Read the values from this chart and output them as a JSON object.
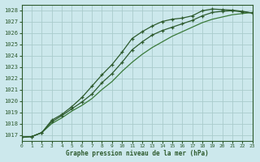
{
  "title": "Graphe pression niveau de la mer (hPa)",
  "bg_color": "#cce8ec",
  "grid_color": "#aacccc",
  "line_color_dark": "#2d5a2d",
  "line_color_mid": "#3a7a3a",
  "xlim": [
    0,
    23
  ],
  "ylim": [
    1016.5,
    1028.5
  ],
  "yticks": [
    1017,
    1018,
    1019,
    1020,
    1021,
    1022,
    1023,
    1024,
    1025,
    1026,
    1027,
    1028
  ],
  "xticks": [
    0,
    1,
    2,
    3,
    4,
    5,
    6,
    7,
    8,
    9,
    10,
    11,
    12,
    13,
    14,
    15,
    16,
    17,
    18,
    19,
    20,
    21,
    22,
    23
  ],
  "series1_x": [
    0,
    1,
    2,
    3,
    4,
    5,
    6,
    7,
    8,
    9,
    10,
    11,
    12,
    13,
    14,
    15,
    16,
    17,
    18,
    19,
    20,
    21,
    22,
    23
  ],
  "series1_y": [
    1016.8,
    1016.85,
    1017.2,
    1018.3,
    1018.8,
    1019.5,
    1020.3,
    1021.3,
    1022.3,
    1023.2,
    1024.3,
    1025.5,
    1026.1,
    1026.6,
    1027.0,
    1027.2,
    1027.3,
    1027.5,
    1027.95,
    1028.1,
    1028.05,
    1028.0,
    1027.9,
    1027.75
  ],
  "series2_x": [
    0,
    1,
    2,
    3,
    4,
    5,
    6,
    7,
    8,
    9,
    10,
    11,
    12,
    13,
    14,
    15,
    16,
    17,
    18,
    19,
    20,
    21,
    22,
    23
  ],
  "series2_y": [
    1016.8,
    1016.85,
    1017.2,
    1018.0,
    1018.5,
    1019.1,
    1019.6,
    1020.2,
    1021.0,
    1021.7,
    1022.6,
    1023.4,
    1024.1,
    1024.7,
    1025.2,
    1025.7,
    1026.1,
    1026.5,
    1026.9,
    1027.2,
    1027.4,
    1027.6,
    1027.7,
    1027.8
  ],
  "series3_x": [
    0,
    1,
    2,
    3,
    4,
    5,
    6,
    7,
    8,
    9,
    10,
    11,
    12,
    13,
    14,
    15,
    16,
    17,
    18,
    19,
    20,
    21,
    22,
    23
  ],
  "series3_y": [
    1016.8,
    1016.85,
    1017.2,
    1018.15,
    1018.7,
    1019.3,
    1019.9,
    1020.6,
    1021.6,
    1022.4,
    1023.4,
    1024.5,
    1025.2,
    1025.8,
    1026.2,
    1026.5,
    1026.8,
    1027.1,
    1027.5,
    1027.8,
    1027.9,
    1027.95,
    1027.85,
    1027.75
  ]
}
